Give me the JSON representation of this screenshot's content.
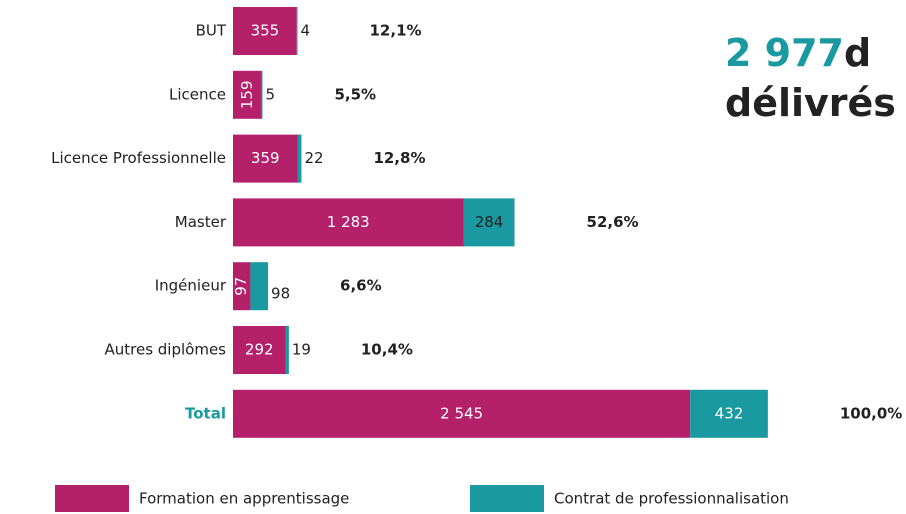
{
  "chart_data": {
    "type": "stacked-barh",
    "title": {
      "number": "2 977",
      "rest": "d",
      "line2": "délivrés"
    },
    "categories": [
      "BUT",
      "Licence",
      "Licence Professionnelle",
      "Master",
      "Ingénieur",
      "Autres diplômes",
      "Total"
    ],
    "series": [
      {
        "name": "Formation en apprentissage",
        "color": "#b5206b",
        "values": [
          355,
          159,
          359,
          1283,
          97,
          292,
          2545
        ],
        "value_labels": [
          "355",
          "159",
          "359",
          "1 283",
          "97",
          "292",
          "2 545"
        ]
      },
      {
        "name": "Contrat de professionnalisation",
        "color": "#1a9aa0",
        "values": [
          4,
          5,
          22,
          284,
          98,
          19,
          432
        ],
        "value_labels": [
          "4",
          "5",
          "22",
          "284",
          "98",
          "19",
          "432"
        ]
      }
    ],
    "shares": {
      "values": [
        12.1,
        5.5,
        12.8,
        52.6,
        6.6,
        10.4,
        100.0
      ],
      "value_labels": [
        "12,1%",
        "5,5%",
        "12,8%",
        "52,6%",
        "6,6%",
        "10,4%",
        "100,0%"
      ]
    },
    "xlim": [
      0,
      3000
    ],
    "highlight_color": "#1a9aa0"
  }
}
